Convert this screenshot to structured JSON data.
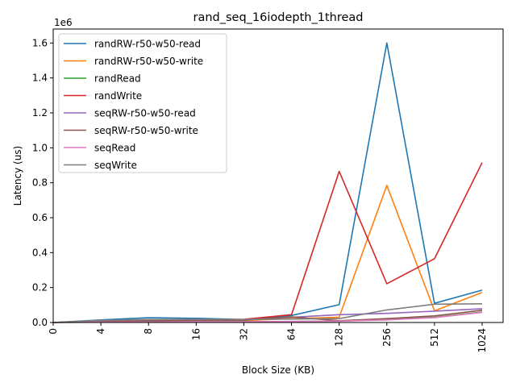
{
  "chart_data": {
    "type": "line",
    "title": "rand_seq_16iodepth_1thread",
    "xlabel": "Block Size (KB)",
    "ylabel": "Latency (us)",
    "y_offset_label": "1e6",
    "y_multiplier": 1000000,
    "categories": [
      "0",
      "4",
      "8",
      "16",
      "32",
      "64",
      "128",
      "256",
      "512",
      "1024"
    ],
    "ylim": [
      0,
      1.68
    ],
    "yticks": [
      "0.0",
      "0.2",
      "0.4",
      "0.6",
      "0.8",
      "1.0",
      "1.2",
      "1.4",
      "1.6"
    ],
    "legend_position": "top-left",
    "grid": false,
    "series": [
      {
        "name": "randRW-r50-w50-read",
        "color": "#1f77b4",
        "values": [
          0.0,
          0.015,
          0.027,
          0.024,
          0.017,
          0.04,
          0.102,
          1.6,
          0.11,
          0.185
        ]
      },
      {
        "name": "randRW-r50-w50-write",
        "color": "#ff7f0e",
        "values": [
          0.0,
          0.01,
          0.014,
          0.014,
          0.011,
          0.022,
          0.03,
          0.785,
          0.067,
          0.172
        ]
      },
      {
        "name": "randRead",
        "color": "#2ca02c",
        "values": [
          0.0,
          0.003,
          0.004,
          0.005,
          0.004,
          0.006,
          0.008,
          0.018,
          0.03,
          0.06
        ]
      },
      {
        "name": "randWrite",
        "color": "#d62728",
        "values": [
          0.0,
          0.01,
          0.016,
          0.017,
          0.018,
          0.045,
          0.865,
          0.222,
          0.365,
          0.915
        ]
      },
      {
        "name": "seqRW-r50-w50-read",
        "color": "#9467bd",
        "values": [
          0.0,
          0.008,
          0.014,
          0.015,
          0.016,
          0.03,
          0.045,
          0.052,
          0.065,
          0.079
        ]
      },
      {
        "name": "seqRW-r50-w50-write",
        "color": "#8c564b",
        "values": [
          0.0,
          0.006,
          0.01,
          0.012,
          0.013,
          0.032,
          0.01,
          0.022,
          0.038,
          0.07
        ]
      },
      {
        "name": "seqRead",
        "color": "#e377c2",
        "values": [
          0.0,
          0.002,
          0.003,
          0.004,
          0.004,
          0.006,
          0.008,
          0.015,
          0.028,
          0.058
        ]
      },
      {
        "name": "seqWrite",
        "color": "#7f7f7f",
        "values": [
          0.0,
          0.012,
          0.017,
          0.018,
          0.017,
          0.02,
          0.022,
          0.072,
          0.105,
          0.107
        ]
      }
    ]
  }
}
